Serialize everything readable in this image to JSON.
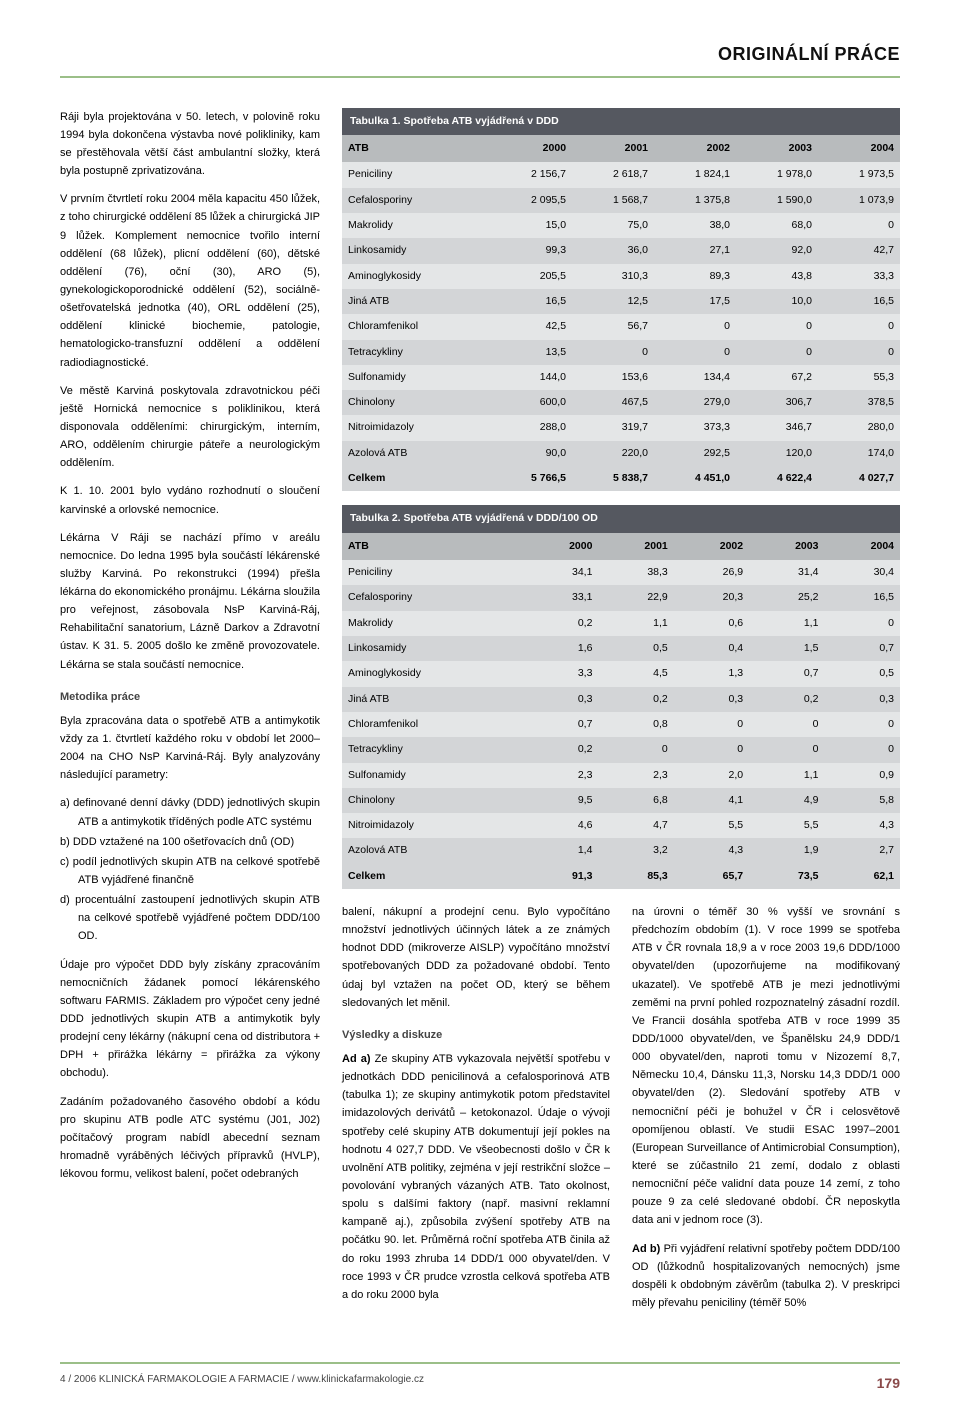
{
  "header": "ORIGINÁLNÍ PRÁCE",
  "left_paragraphs": [
    "Ráji byla projektována v 50. letech, v polovině roku 1994 byla dokončena výstavba nové polikliniky, kam se přestěhovala větší část ambulantní složky, která byla postupně zprivatizována.",
    "V prvním čtvrtletí roku 2004 měla kapacitu 450 lůžek, z toho chirurgické oddělení 85 lůžek a chirurgická JIP 9 lůžek. Komplement nemocnice tvořilo interní oddělení (68 lůžek), plicní oddělení (60), dětské oddělení (76), oční (30), ARO (5), gynekologickoporodnické oddělení (52), sociálně-ošetřovatelská jednotka (40), ORL oddělení (25), oddělení klinické biochemie, patologie, hematologicko-transfuzní oddělení a oddělení radiodiagnostické.",
    "Ve městě Karviná poskytovala zdravotnickou péči ještě Hornická nemocnice s poliklinikou, která disponovala odděleními: chirurgickým, interním, ARO, oddělením chirurgie páteře a neurologickým oddělením.",
    "K 1. 10. 2001 bylo vydáno rozhodnutí o sloučení karvinské a orlovské nemocnice.",
    "Lékárna V Ráji se nachází přímo v areálu nemocnice. Do ledna 1995 byla součástí lékárenské služby Karviná. Po rekonstrukci (1994) přešla lékárna do ekonomického pronájmu. Lékárna sloužila pro veřejnost, zásobovala NsP Karviná-Ráj, Rehabilitační sanatorium, Lázně Darkov a Zdravotní ústav. K 31. 5. 2005 došlo ke změně provozovatele. Lékárna se stala součástí nemocnice."
  ],
  "method_head": "Metodika práce",
  "method_intro": "Byla zpracována data o spotřebě ATB a antimykotik vždy za 1. čtvrtletí každého roku v období let 2000–2004 na CHO NsP Karviná-Ráj. Byly analyzovány následující parametry:",
  "method_items": [
    "a) definované denní dávky (DDD) jednotlivých skupin ATB a antimykotik tříděných podle ATC systému",
    "b) DDD vztažené na 100 ošetřovacích dnů (OD)",
    "c) podíl jednotlivých skupin ATB na celkové spotřebě ATB vyjádřené finančně",
    "d) procentuální zastoupení jednotlivých skupin ATB na celkové spotřebě vyjádřené počtem DDD/100 OD."
  ],
  "method_tail": [
    "Údaje pro výpočet DDD byly získány zpracováním nemocničních žádanek pomocí lékárenského softwaru FARMIS. Základem pro výpočet ceny jedné DDD jednotlivých skupin ATB a antimykotik byly prodejní ceny lékárny (nákupní cena od distributora + DPH + přirážka lékárny = přirážka za výkony obchodu).",
    "Zadáním požadovaného časového období a kódu pro skupinu ATB podle ATC systému (J01, J02) počítačový program nabídl abecední seznam hromadně vyráběných léčivých přípravků (HVLP), lékovou formu, velikost balení, počet odebraných"
  ],
  "table1": {
    "title": "Tabulka 1. Spotřeba ATB vyjádřená v DDD",
    "columns": [
      "ATB",
      "2000",
      "2001",
      "2002",
      "2003",
      "2004"
    ],
    "rows": [
      [
        "Peniciliny",
        "2 156,7",
        "2 618,7",
        "1 824,1",
        "1 978,0",
        "1 973,5"
      ],
      [
        "Cefalosporiny",
        "2 095,5",
        "1 568,7",
        "1 375,8",
        "1 590,0",
        "1 073,9"
      ],
      [
        "Makrolidy",
        "15,0",
        "75,0",
        "38,0",
        "68,0",
        "0"
      ],
      [
        "Linkosamidy",
        "99,3",
        "36,0",
        "27,1",
        "92,0",
        "42,7"
      ],
      [
        "Aminoglykosidy",
        "205,5",
        "310,3",
        "89,3",
        "43,8",
        "33,3"
      ],
      [
        "Jiná ATB",
        "16,5",
        "12,5",
        "17,5",
        "10,0",
        "16,5"
      ],
      [
        "Chloramfenikol",
        "42,5",
        "56,7",
        "0",
        "0",
        "0"
      ],
      [
        "Tetracykliny",
        "13,5",
        "0",
        "0",
        "0",
        "0"
      ],
      [
        "Sulfonamidy",
        "144,0",
        "153,6",
        "134,4",
        "67,2",
        "55,3"
      ],
      [
        "Chinolony",
        "600,0",
        "467,5",
        "279,0",
        "306,7",
        "378,5"
      ],
      [
        "Nitroimidazoly",
        "288,0",
        "319,7",
        "373,3",
        "346,7",
        "280,0"
      ],
      [
        "Azolová ATB",
        "90,0",
        "220,0",
        "292,5",
        "120,0",
        "174,0"
      ]
    ],
    "total": [
      "Celkem",
      "5 766,5",
      "5 838,7",
      "4 451,0",
      "4 622,4",
      "4 027,7"
    ]
  },
  "table2": {
    "title": "Tabulka 2. Spotřeba ATB vyjádřená v DDD/100 OD",
    "columns": [
      "ATB",
      "2000",
      "2001",
      "2002",
      "2003",
      "2004"
    ],
    "rows": [
      [
        "Peniciliny",
        "34,1",
        "38,3",
        "26,9",
        "31,4",
        "30,4"
      ],
      [
        "Cefalosporiny",
        "33,1",
        "22,9",
        "20,3",
        "25,2",
        "16,5"
      ],
      [
        "Makrolidy",
        "0,2",
        "1,1",
        "0,6",
        "1,1",
        "0"
      ],
      [
        "Linkosamidy",
        "1,6",
        "0,5",
        "0,4",
        "1,5",
        "0,7"
      ],
      [
        "Aminoglykosidy",
        "3,3",
        "4,5",
        "1,3",
        "0,7",
        "0,5"
      ],
      [
        "Jiná ATB",
        "0,3",
        "0,2",
        "0,3",
        "0,2",
        "0,3"
      ],
      [
        "Chloramfenikol",
        "0,7",
        "0,8",
        "0",
        "0",
        "0"
      ],
      [
        "Tetracykliny",
        "0,2",
        "0",
        "0",
        "0",
        "0"
      ],
      [
        "Sulfonamidy",
        "2,3",
        "2,3",
        "2,0",
        "1,1",
        "0,9"
      ],
      [
        "Chinolony",
        "9,5",
        "6,8",
        "4,1",
        "4,9",
        "5,8"
      ],
      [
        "Nitroimidazoly",
        "4,6",
        "4,7",
        "5,5",
        "5,5",
        "4,3"
      ],
      [
        "Azolová ATB",
        "1,4",
        "3,2",
        "4,3",
        "1,9",
        "2,7"
      ]
    ],
    "total": [
      "Celkem",
      "91,3",
      "85,3",
      "65,7",
      "73,5",
      "62,1"
    ]
  },
  "bottom_left": [
    "balení, nákupní a prodejní cenu. Bylo vypočítáno množství jednotlivých účinných látek a ze známých hodnot DDD (mikroverze AISLP) vypočítáno množství spotřebovaných DDD za požadované období. Tento údaj byl vztažen na počet OD, který se během sledovaných let měnil."
  ],
  "results_head": "Výsledky a diskuze",
  "results_a": "Ad a) Ze skupiny ATB vykazovala největší spotřebu v jednotkách DDD penicilinová a cefalosporinová ATB (tabulka 1); ze skupiny antimykotik potom představitel imidazolových derivátů – ketokonazol. Údaje o vývoji spotřeby celé skupiny ATB dokumentují její pokles na hodnotu 4 027,7 DDD. Ve všeobecnosti došlo v ČR k uvolnění ATB politiky, zejména v její restrikční složce – povolování vybraných vázaných ATB. Tato okolnost, spolu s dalšími faktory (např. masivní reklamní kampaně aj.), způsobila zvýšení spotřeby ATB na počátku 90. let. Průměrná roční spotřeba ATB činila až do roku 1993 zhruba 14 DDD/1 000 obyvatel/den. V roce 1993 v ČR prudce vzrostla celková spotřeba ATB a do roku 2000 byla",
  "bottom_right": [
    "na úrovni o téměř 30 % vyšší ve srovnání s předchozím obdobím (1). V roce 1999 se spotřeba ATB v ČR rovnala 18,9 a v roce 2003 19,6 DDD/1000 obyvatel/den (upozorňujeme na modifikovaný ukazatel). Ve spotřebě ATB je mezi jednotlivými zeměmi na první pohled rozpoznatelný zásadní rozdíl. Ve Francii dosáhla spotřeba ATB v roce 1999 35 DDD/1000 obyvatel/den, ve Španělsku 24,9 DDD/1 000 obyvatel/den, naproti tomu v Nizozemí 8,7, Německu 10,4, Dánsku 11,3, Norsku 14,3 DDD/1 000 obyvatel/den (2). Sledování spotřeby ATB v nemocniční péči je bohužel v ČR i celosvětově opomíjenou oblastí. Ve studii ESAC 1997–2001 (European Surveillance of Antimicrobial Consumption), které se zúčastnilo 21 zemí, dodalo z oblasti nemocniční péče validní data pouze 14 zemí, z toho pouze 9 za celé sledované období. ČR neposkytla data ani v jednom roce (3).",
    "Ad b) Při vyjádření relativní spotřeby počtem DDD/100 OD (lůžkodnů hospitalizovaných nemocných) jsme dospěli k obdobným závěrům (tabulka 2). V preskripci měly převahu peniciliny (téměř 50%"
  ],
  "footer_left": "4 / 2006   KLINICKÁ FARMAKOLOGIE A FARMACIE   /   www.klinickafarmakologie.cz",
  "footer_page": "179"
}
